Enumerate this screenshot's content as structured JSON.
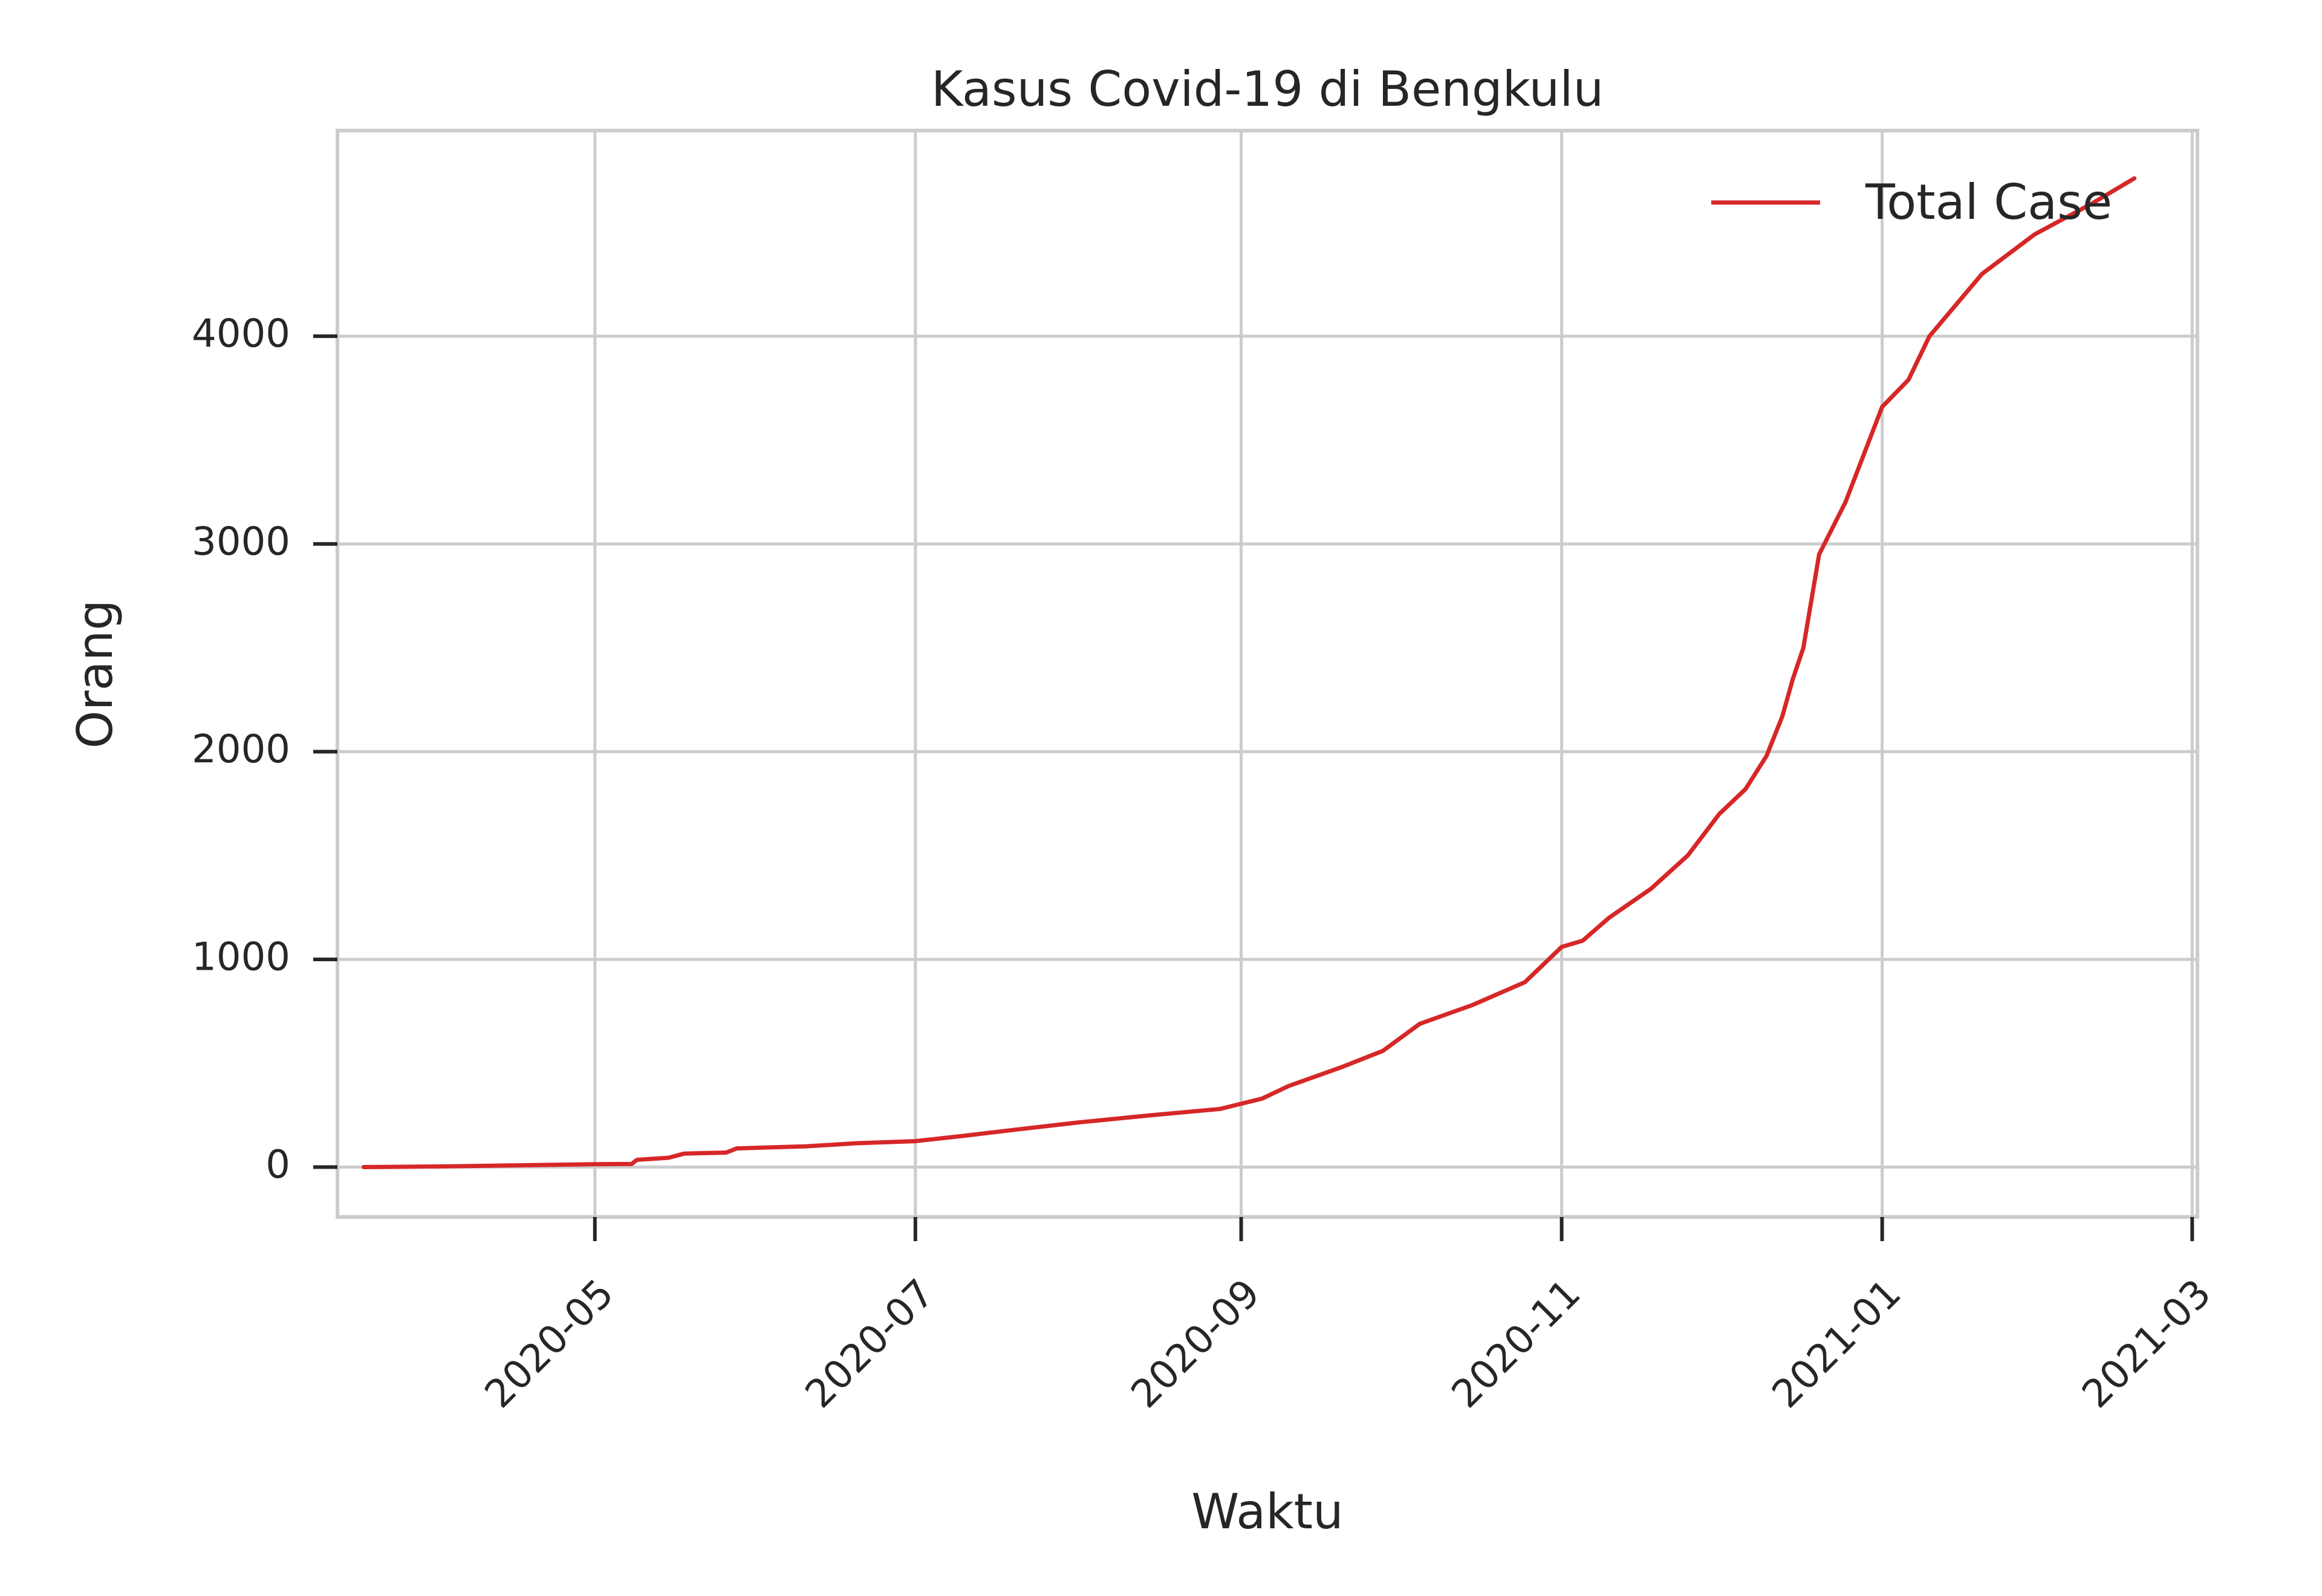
{
  "chart_data": {
    "type": "line",
    "title": "Kasus Covid-19 di Bengkulu",
    "xlabel": "Waktu",
    "ylabel": "Orang",
    "x_tick_labels": [
      "2020-05",
      "2020-07",
      "2020-09",
      "2020-11",
      "2021-01",
      "2021-03"
    ],
    "x_ticks": [
      "2020-05-01",
      "2020-07-01",
      "2020-09-01",
      "2020-11-01",
      "2021-01-01",
      "2021-03-01"
    ],
    "y_ticks": [
      0,
      1000,
      2000,
      3000,
      4000
    ],
    "xlim": [
      "2020-03-13",
      "2021-03-02"
    ],
    "ylim": [
      -240,
      4990
    ],
    "grid": true,
    "legend_position": "top-right",
    "colors": {
      "line": "#d62728",
      "grid": "#cccccc",
      "frame": "#cccccc",
      "tick": "#262626"
    },
    "series": [
      {
        "name": "Total Case",
        "x": [
          "2020-03-18",
          "2020-04-01",
          "2020-04-15",
          "2020-04-20",
          "2020-05-01",
          "2020-05-08",
          "2020-05-09",
          "2020-05-15",
          "2020-05-18",
          "2020-05-26",
          "2020-05-28",
          "2020-06-10",
          "2020-06-20",
          "2020-07-01",
          "2020-07-10",
          "2020-07-20",
          "2020-08-01",
          "2020-08-15",
          "2020-08-28",
          "2020-09-05",
          "2020-09-10",
          "2020-09-20",
          "2020-09-28",
          "2020-10-05",
          "2020-10-15",
          "2020-10-25",
          "2020-11-01",
          "2020-11-05",
          "2020-11-10",
          "2020-11-18",
          "2020-11-25",
          "2020-12-01",
          "2020-12-06",
          "2020-12-10",
          "2020-12-13",
          "2020-12-15",
          "2020-12-17",
          "2020-12-20",
          "2020-12-25",
          "2021-01-01",
          "2021-01-06",
          "2021-01-10",
          "2021-01-15",
          "2021-01-20",
          "2021-01-30",
          "2021-02-10",
          "2021-02-18"
        ],
        "y": [
          0,
          3,
          8,
          10,
          14,
          15,
          35,
          45,
          65,
          70,
          90,
          100,
          115,
          125,
          150,
          180,
          215,
          250,
          280,
          330,
          390,
          480,
          560,
          690,
          780,
          890,
          1060,
          1090,
          1200,
          1340,
          1500,
          1700,
          1820,
          1980,
          2170,
          2350,
          2500,
          2950,
          3200,
          3660,
          3790,
          4000,
          4150,
          4300,
          4490,
          4640,
          4760
        ]
      }
    ]
  }
}
